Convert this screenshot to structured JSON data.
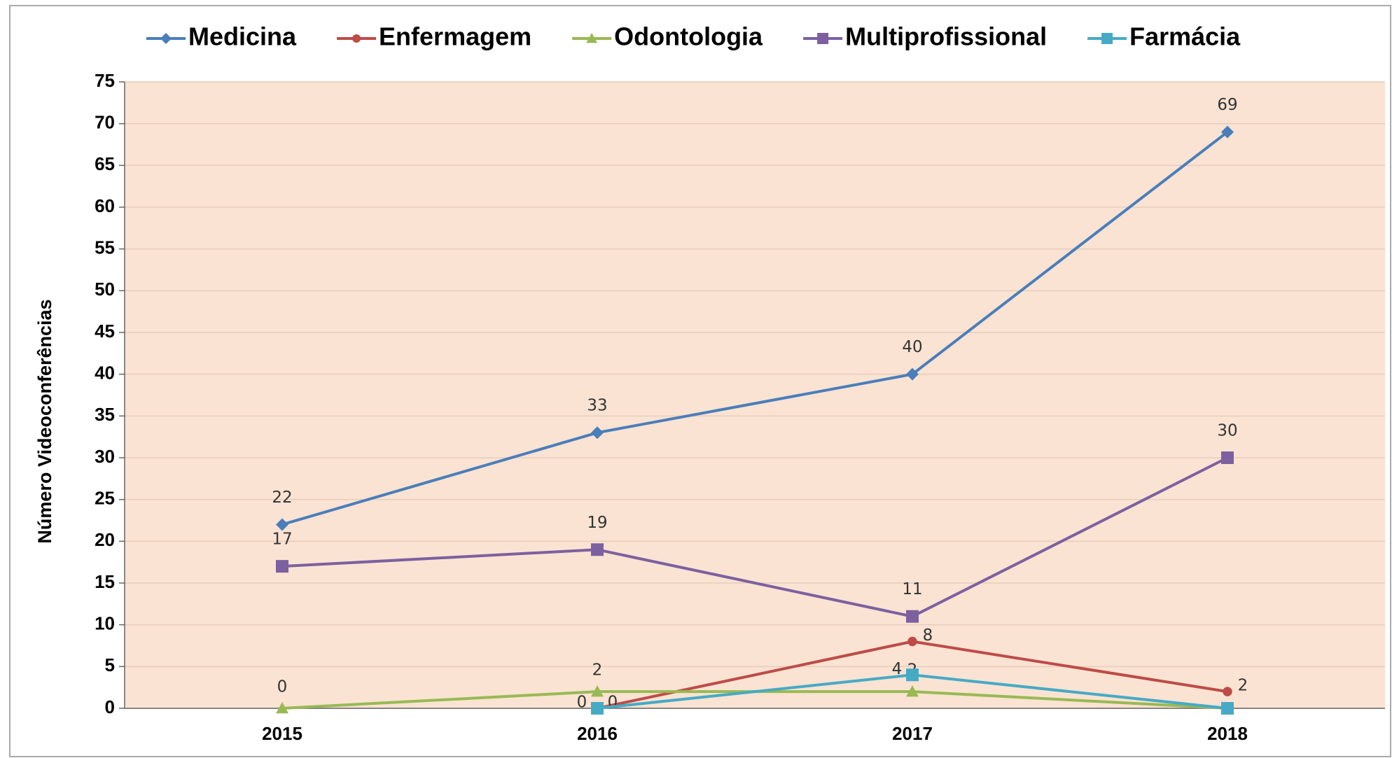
{
  "chart_data": {
    "type": "line",
    "y_label": "Número Videoconferências",
    "categories": [
      "2015",
      "2016",
      "2017",
      "2018"
    ],
    "series": [
      {
        "name": "Medicina",
        "color": "#4a7ebb",
        "marker": "diamond",
        "values": [
          22,
          33,
          40,
          69
        ],
        "value_labels": [
          "22",
          "33",
          "40",
          "69"
        ]
      },
      {
        "name": "Enfermagem",
        "color": "#be4b48",
        "marker": "circle",
        "values": [
          null,
          0,
          8,
          2
        ],
        "value_labels": [
          null,
          "0",
          "8",
          "2"
        ]
      },
      {
        "name": "Odontologia",
        "color": "#98b954",
        "marker": "triangle",
        "values": [
          0,
          2,
          2,
          0
        ],
        "value_labels": [
          "0",
          "2",
          "2",
          null
        ]
      },
      {
        "name": "Multiprofissional",
        "color": "#7d60a0",
        "marker": "square",
        "values": [
          17,
          19,
          11,
          30
        ],
        "value_labels": [
          "17",
          "19",
          "11",
          "30"
        ]
      },
      {
        "name": "Farmácia",
        "color": "#46aac5",
        "marker": "square",
        "values": [
          null,
          0,
          4,
          0
        ],
        "value_labels": [
          null,
          "0",
          "4",
          null
        ]
      }
    ],
    "ylim": [
      0,
      75
    ],
    "yticks": [
      0,
      5,
      10,
      15,
      20,
      25,
      30,
      35,
      40,
      45,
      50,
      55,
      60,
      65,
      70,
      75
    ],
    "grid": true,
    "legend": "top",
    "plot_background": "#fae3d2"
  }
}
